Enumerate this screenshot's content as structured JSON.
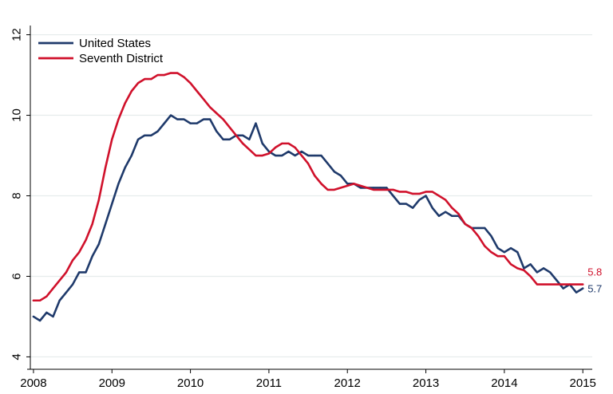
{
  "chart_data": {
    "type": "line",
    "title": "",
    "xlabel": "",
    "ylabel": "",
    "xlim": [
      2007.96,
      2015.12
    ],
    "ylim": [
      3.85,
      12.15
    ],
    "x_ticks": [
      "2008",
      "2009",
      "2010",
      "2011",
      "2012",
      "2013",
      "2014",
      "2015"
    ],
    "y_ticks": [
      "4",
      "6",
      "8",
      "10",
      "12"
    ],
    "grid": true,
    "legend_position": "top-left",
    "series": [
      {
        "name": "United States",
        "color": "#1F3A6B",
        "end_label": "5.7",
        "x": [
          2008.0,
          2008.083,
          2008.167,
          2008.25,
          2008.333,
          2008.417,
          2008.5,
          2008.583,
          2008.667,
          2008.75,
          2008.833,
          2008.917,
          2009.0,
          2009.083,
          2009.167,
          2009.25,
          2009.333,
          2009.417,
          2009.5,
          2009.583,
          2009.667,
          2009.75,
          2009.833,
          2009.917,
          2010.0,
          2010.083,
          2010.167,
          2010.25,
          2010.333,
          2010.417,
          2010.5,
          2010.583,
          2010.667,
          2010.75,
          2010.833,
          2010.917,
          2011.0,
          2011.083,
          2011.167,
          2011.25,
          2011.333,
          2011.417,
          2011.5,
          2011.583,
          2011.667,
          2011.75,
          2011.833,
          2011.917,
          2012.0,
          2012.083,
          2012.167,
          2012.25,
          2012.333,
          2012.417,
          2012.5,
          2012.583,
          2012.667,
          2012.75,
          2012.833,
          2012.917,
          2013.0,
          2013.083,
          2013.167,
          2013.25,
          2013.333,
          2013.417,
          2013.5,
          2013.583,
          2013.667,
          2013.75,
          2013.833,
          2013.917,
          2014.0,
          2014.083,
          2014.167,
          2014.25,
          2014.333,
          2014.417,
          2014.5,
          2014.583,
          2014.667,
          2014.75,
          2014.833,
          2014.917,
          2015.0
        ],
        "values": [
          5.0,
          4.9,
          5.1,
          5.0,
          5.4,
          5.6,
          5.8,
          6.1,
          6.1,
          6.5,
          6.8,
          7.3,
          7.8,
          8.3,
          8.7,
          9.0,
          9.4,
          9.5,
          9.5,
          9.6,
          9.8,
          10.0,
          9.9,
          9.9,
          9.8,
          9.8,
          9.9,
          9.9,
          9.6,
          9.4,
          9.4,
          9.5,
          9.5,
          9.4,
          9.8,
          9.3,
          9.1,
          9.0,
          9.0,
          9.1,
          9.0,
          9.1,
          9.0,
          9.0,
          9.0,
          8.8,
          8.6,
          8.5,
          8.3,
          8.3,
          8.2,
          8.2,
          8.2,
          8.2,
          8.2,
          8.0,
          7.8,
          7.8,
          7.7,
          7.9,
          8.0,
          7.7,
          7.5,
          7.6,
          7.5,
          7.5,
          7.3,
          7.2,
          7.2,
          7.2,
          7.0,
          6.7,
          6.6,
          6.7,
          6.6,
          6.2,
          6.3,
          6.1,
          6.2,
          6.1,
          5.9,
          5.7,
          5.8,
          5.6,
          5.7
        ]
      },
      {
        "name": "Seventh District",
        "color": "#D0112B",
        "end_label": "5.8",
        "x": [
          2008.0,
          2008.083,
          2008.167,
          2008.25,
          2008.333,
          2008.417,
          2008.5,
          2008.583,
          2008.667,
          2008.75,
          2008.833,
          2008.917,
          2009.0,
          2009.083,
          2009.167,
          2009.25,
          2009.333,
          2009.417,
          2009.5,
          2009.583,
          2009.667,
          2009.75,
          2009.833,
          2009.917,
          2010.0,
          2010.083,
          2010.167,
          2010.25,
          2010.333,
          2010.417,
          2010.5,
          2010.583,
          2010.667,
          2010.75,
          2010.833,
          2010.917,
          2011.0,
          2011.083,
          2011.167,
          2011.25,
          2011.333,
          2011.417,
          2011.5,
          2011.583,
          2011.667,
          2011.75,
          2011.833,
          2011.917,
          2012.0,
          2012.083,
          2012.167,
          2012.25,
          2012.333,
          2012.417,
          2012.5,
          2012.583,
          2012.667,
          2012.75,
          2012.833,
          2012.917,
          2013.0,
          2013.083,
          2013.167,
          2013.25,
          2013.333,
          2013.417,
          2013.5,
          2013.583,
          2013.667,
          2013.75,
          2013.833,
          2013.917,
          2014.0,
          2014.083,
          2014.167,
          2014.25,
          2014.333,
          2014.417,
          2014.5,
          2014.583,
          2014.667,
          2014.75,
          2014.833,
          2014.917,
          2015.0
        ],
        "values": [
          5.4,
          5.4,
          5.5,
          5.7,
          5.9,
          6.1,
          6.4,
          6.6,
          6.9,
          7.3,
          7.9,
          8.7,
          9.4,
          9.9,
          10.3,
          10.6,
          10.8,
          10.9,
          10.9,
          11.0,
          11.0,
          11.05,
          11.05,
          10.95,
          10.8,
          10.6,
          10.4,
          10.2,
          10.05,
          9.9,
          9.7,
          9.5,
          9.3,
          9.15,
          9.0,
          9.0,
          9.05,
          9.2,
          9.3,
          9.3,
          9.2,
          9.0,
          8.8,
          8.5,
          8.3,
          8.15,
          8.15,
          8.2,
          8.25,
          8.3,
          8.25,
          8.2,
          8.15,
          8.15,
          8.15,
          8.15,
          8.1,
          8.1,
          8.05,
          8.05,
          8.1,
          8.1,
          8.0,
          7.9,
          7.7,
          7.55,
          7.3,
          7.2,
          7.0,
          6.75,
          6.6,
          6.5,
          6.5,
          6.3,
          6.2,
          6.15,
          6.0,
          5.8,
          5.8,
          5.8,
          5.8,
          5.8,
          5.8,
          5.8,
          5.8
        ]
      }
    ]
  }
}
